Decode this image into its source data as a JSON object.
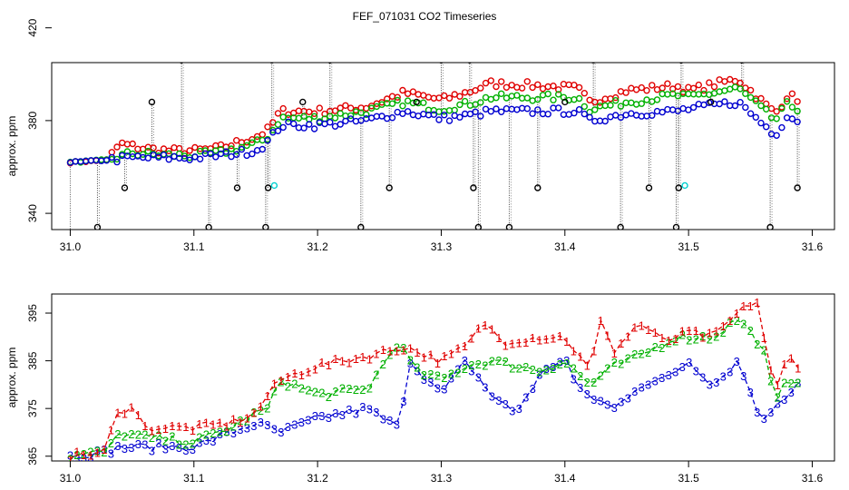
{
  "chart_data": [
    {
      "type": "scatter",
      "panel": "top",
      "title": "FEF_071031  CO2 Timeseries",
      "xlabel": "",
      "ylabel": "approx. ppm",
      "xlim": [
        30.985,
        31.618
      ],
      "ylim": [
        333,
        405
      ],
      "x_ticks": [
        31.0,
        31.1,
        31.2,
        31.3,
        31.4,
        31.5,
        31.6
      ],
      "y_ticks": [
        340,
        380,
        420
      ],
      "y_ticks_display": [
        340,
        380,
        420
      ],
      "grid": false,
      "point_symbol": "circle",
      "series": [
        {
          "name": "1",
          "color": "#e00000"
        },
        {
          "name": "2",
          "color": "#00b000"
        },
        {
          "name": "3",
          "color": "#0000d0"
        },
        {
          "name": "spike",
          "color": "#000000"
        },
        {
          "name": "cyan",
          "color": "#00d0d0"
        }
      ],
      "series1_anchors": [
        [
          31.0,
          362
        ],
        [
          31.03,
          363
        ],
        [
          31.04,
          370
        ],
        [
          31.06,
          368
        ],
        [
          31.08,
          367
        ],
        [
          31.1,
          367
        ],
        [
          31.12,
          368
        ],
        [
          31.15,
          373
        ],
        [
          31.16,
          376
        ],
        [
          31.17,
          384
        ],
        [
          31.2,
          384
        ],
        [
          31.24,
          386
        ],
        [
          31.27,
          392
        ],
        [
          31.3,
          389
        ],
        [
          31.32,
          392
        ],
        [
          31.34,
          396
        ],
        [
          31.38,
          395
        ],
        [
          31.41,
          394
        ],
        [
          31.42,
          388
        ],
        [
          31.45,
          393
        ],
        [
          31.49,
          395
        ],
        [
          31.5,
          393
        ],
        [
          31.54,
          398
        ],
        [
          31.57,
          383
        ],
        [
          31.58,
          391
        ],
        [
          31.59,
          389
        ]
      ],
      "series2_anchors": [
        [
          31.0,
          362
        ],
        [
          31.03,
          363
        ],
        [
          31.05,
          366
        ],
        [
          31.08,
          365
        ],
        [
          31.1,
          365
        ],
        [
          31.12,
          366
        ],
        [
          31.15,
          370
        ],
        [
          31.16,
          373
        ],
        [
          31.17,
          381
        ],
        [
          31.2,
          381
        ],
        [
          31.24,
          384
        ],
        [
          31.27,
          388
        ],
        [
          31.3,
          385
        ],
        [
          31.32,
          387
        ],
        [
          31.34,
          390
        ],
        [
          31.38,
          390
        ],
        [
          31.41,
          390
        ],
        [
          31.42,
          385
        ],
        [
          31.45,
          388
        ],
        [
          31.49,
          391
        ],
        [
          31.5,
          390
        ],
        [
          31.54,
          394
        ],
        [
          31.57,
          380
        ],
        [
          31.58,
          387
        ],
        [
          31.59,
          385
        ]
      ],
      "series3_anchors": [
        [
          31.0,
          362
        ],
        [
          31.03,
          363
        ],
        [
          31.05,
          364
        ],
        [
          31.08,
          364
        ],
        [
          31.1,
          364
        ],
        [
          31.12,
          365
        ],
        [
          31.15,
          367
        ],
        [
          31.16,
          371
        ],
        [
          31.17,
          378
        ],
        [
          31.2,
          378
        ],
        [
          31.24,
          380
        ],
        [
          31.27,
          384
        ],
        [
          31.3,
          381
        ],
        [
          31.32,
          382
        ],
        [
          31.34,
          384
        ],
        [
          31.38,
          384
        ],
        [
          31.41,
          384
        ],
        [
          31.42,
          380
        ],
        [
          31.45,
          383
        ],
        [
          31.49,
          384
        ],
        [
          31.5,
          385
        ],
        [
          31.54,
          388
        ],
        [
          31.57,
          374
        ],
        [
          31.58,
          382
        ],
        [
          31.59,
          380
        ]
      ],
      "black_spikes": [
        [
          31.022,
          334
        ],
        [
          31.044,
          351
        ],
        [
          31.066,
          388
        ],
        [
          31.09,
          406
        ],
        [
          31.112,
          334
        ],
        [
          31.135,
          351
        ],
        [
          31.158,
          334
        ],
        [
          31.16,
          351
        ],
        [
          31.163,
          406
        ],
        [
          31.188,
          388
        ],
        [
          31.21,
          406
        ],
        [
          31.235,
          334
        ],
        [
          31.258,
          351
        ],
        [
          31.28,
          388
        ],
        [
          31.3,
          406
        ],
        [
          31.323,
          406
        ],
        [
          31.326,
          351
        ],
        [
          31.33,
          334
        ],
        [
          31.355,
          334
        ],
        [
          31.378,
          351
        ],
        [
          31.4,
          388
        ],
        [
          31.423,
          406
        ],
        [
          31.445,
          334
        ],
        [
          31.468,
          351
        ],
        [
          31.49,
          334
        ],
        [
          31.492,
          351
        ],
        [
          31.494,
          406
        ],
        [
          31.518,
          388
        ],
        [
          31.543,
          406
        ],
        [
          31.566,
          334
        ],
        [
          31.588,
          351
        ]
      ],
      "cyan_points": [
        [
          31.165,
          352
        ],
        [
          31.497,
          352
        ]
      ]
    },
    {
      "type": "line",
      "panel": "bottom",
      "xlabel": "",
      "ylabel": "approx. ppm",
      "xlim": [
        30.985,
        31.618
      ],
      "ylim": [
        364,
        399
      ],
      "x_ticks": [
        31.0,
        31.1,
        31.2,
        31.3,
        31.4,
        31.5,
        31.6
      ],
      "y_ticks": [
        365,
        375,
        385,
        395
      ],
      "grid": false,
      "point_symbol": "series number glyph",
      "series": [
        {
          "name": "1",
          "color": "#e00000",
          "style": "dashed"
        },
        {
          "name": "2",
          "color": "#00b000",
          "style": "dashed"
        },
        {
          "name": "3",
          "color": "#0000d0",
          "style": "dashed"
        }
      ],
      "series1_anchors": [
        [
          31.0,
          365
        ],
        [
          31.03,
          366
        ],
        [
          31.035,
          373
        ],
        [
          31.05,
          376
        ],
        [
          31.06,
          371
        ],
        [
          31.1,
          371
        ],
        [
          31.13,
          372
        ],
        [
          31.15,
          374
        ],
        [
          31.16,
          378
        ],
        [
          31.17,
          381
        ],
        [
          31.2,
          384
        ],
        [
          31.24,
          386
        ],
        [
          31.27,
          388
        ],
        [
          31.3,
          385
        ],
        [
          31.32,
          388
        ],
        [
          31.335,
          393
        ],
        [
          31.35,
          389
        ],
        [
          31.38,
          390
        ],
        [
          31.4,
          390
        ],
        [
          31.42,
          383
        ],
        [
          31.43,
          394
        ],
        [
          31.44,
          387
        ],
        [
          31.46,
          393
        ],
        [
          31.48,
          389
        ],
        [
          31.5,
          391
        ],
        [
          31.52,
          390
        ],
        [
          31.54,
          395
        ],
        [
          31.555,
          398
        ],
        [
          31.57,
          378
        ],
        [
          31.58,
          386
        ],
        [
          31.59,
          384
        ]
      ],
      "series2_anchors": [
        [
          31.0,
          365
        ],
        [
          31.03,
          366
        ],
        [
          31.04,
          370
        ],
        [
          31.06,
          369
        ],
        [
          31.1,
          368
        ],
        [
          31.13,
          371
        ],
        [
          31.15,
          374
        ],
        [
          31.16,
          375
        ],
        [
          31.17,
          381
        ],
        [
          31.2,
          378
        ],
        [
          31.24,
          379
        ],
        [
          31.265,
          389
        ],
        [
          31.28,
          383
        ],
        [
          31.3,
          381
        ],
        [
          31.32,
          384
        ],
        [
          31.34,
          385
        ],
        [
          31.38,
          383
        ],
        [
          31.4,
          385
        ],
        [
          31.42,
          380
        ],
        [
          31.44,
          384
        ],
        [
          31.46,
          386
        ],
        [
          31.49,
          390
        ],
        [
          31.52,
          390
        ],
        [
          31.54,
          394
        ],
        [
          31.56,
          388
        ],
        [
          31.57,
          376
        ],
        [
          31.58,
          381
        ],
        [
          31.59,
          381
        ]
      ],
      "series3_anchors": [
        [
          31.0,
          365
        ],
        [
          31.03,
          366
        ],
        [
          31.04,
          367
        ],
        [
          31.08,
          367
        ],
        [
          31.1,
          367
        ],
        [
          31.13,
          370
        ],
        [
          31.15,
          372
        ],
        [
          31.17,
          370
        ],
        [
          31.2,
          373
        ],
        [
          31.24,
          375
        ],
        [
          31.265,
          371
        ],
        [
          31.275,
          385
        ],
        [
          31.3,
          378
        ],
        [
          31.32,
          385
        ],
        [
          31.34,
          378
        ],
        [
          31.36,
          374
        ],
        [
          31.38,
          382
        ],
        [
          31.4,
          386
        ],
        [
          31.41,
          379
        ],
        [
          31.44,
          375
        ],
        [
          31.46,
          380
        ],
        [
          31.48,
          381
        ],
        [
          31.5,
          385
        ],
        [
          31.52,
          380
        ],
        [
          31.54,
          385
        ],
        [
          31.56,
          372
        ],
        [
          31.57,
          376
        ],
        [
          31.58,
          378
        ],
        [
          31.59,
          381
        ]
      ]
    }
  ]
}
